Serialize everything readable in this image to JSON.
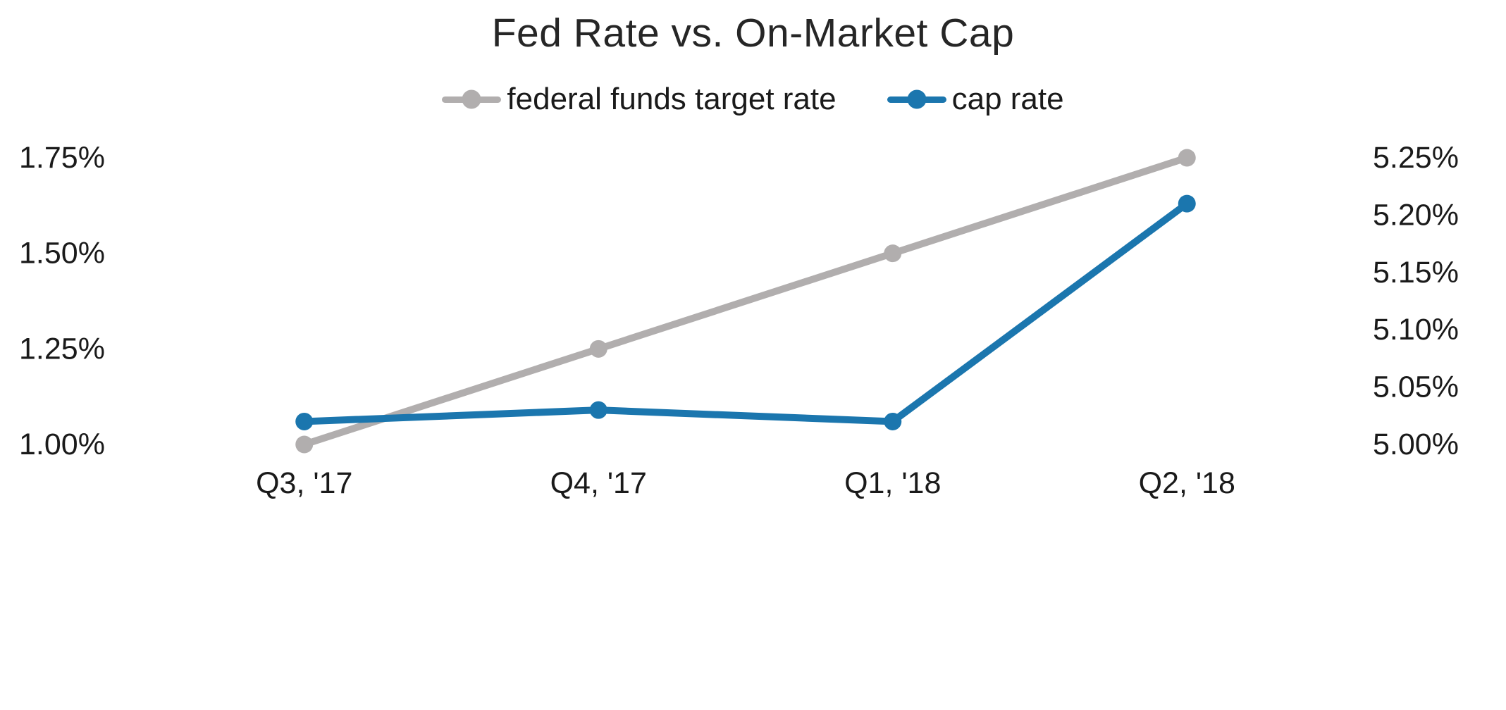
{
  "chart_data": {
    "type": "line",
    "title": "Fed Rate vs. On-Market Cap",
    "categories": [
      "Q3, '17",
      "Q4, '17",
      "Q1, '18",
      "Q2, '18"
    ],
    "series": [
      {
        "name": "federal funds target rate",
        "axis": "left",
        "color": "#b1aeae",
        "values": [
          1.0,
          1.25,
          1.5,
          1.75
        ]
      },
      {
        "name": "cap rate",
        "axis": "right",
        "color": "#1b76ae",
        "values": [
          5.02,
          5.03,
          5.02,
          5.21
        ]
      }
    ],
    "axes": {
      "left": {
        "min": 1.0,
        "max": 1.75,
        "ticks": [
          {
            "label": "1.75%",
            "value": 1.75
          },
          {
            "label": "1.50%",
            "value": 1.5
          },
          {
            "label": "1.25%",
            "value": 1.25
          },
          {
            "label": "1.00%",
            "value": 1.0
          }
        ]
      },
      "right": {
        "min": 5.0,
        "max": 5.25,
        "ticks": [
          {
            "label": "5.25%",
            "value": 5.25
          },
          {
            "label": "5.20%",
            "value": 5.2
          },
          {
            "label": "5.15%",
            "value": 5.15
          },
          {
            "label": "5.10%",
            "value": 5.1
          },
          {
            "label": "5.05%",
            "value": 5.05
          },
          {
            "label": "5.00%",
            "value": 5.0
          }
        ]
      }
    },
    "legend_position": "top",
    "grid": false,
    "background_color": "#ffffff",
    "text_color": "#1a1a1a"
  }
}
